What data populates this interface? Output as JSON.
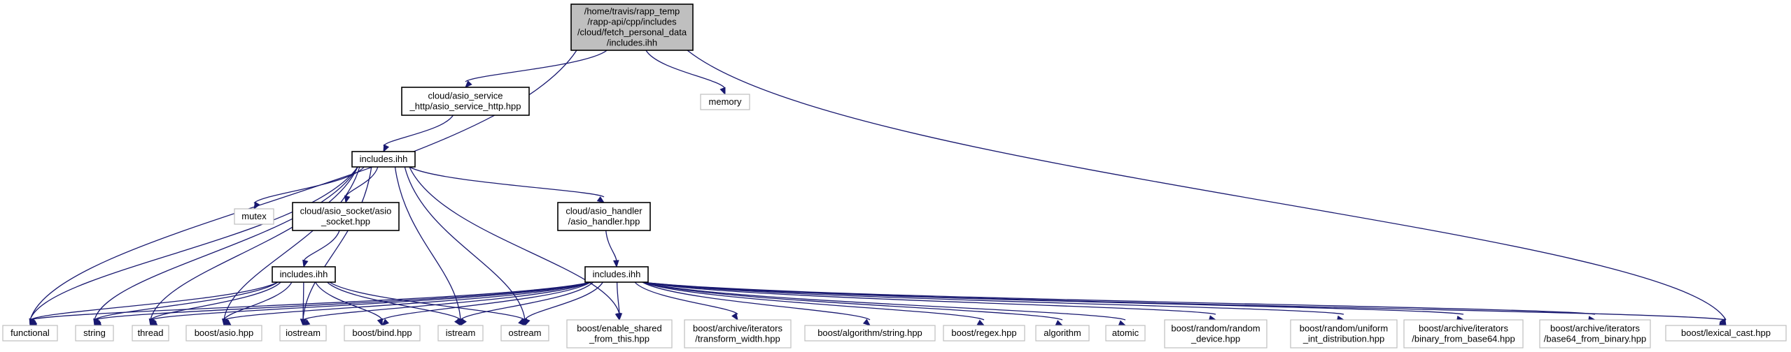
{
  "diagram": {
    "nodes": [
      {
        "id": "root",
        "kind": "root",
        "lines": [
          "/home/travis/rapp_temp",
          "/rapp-api/cpp/includes",
          "/cloud/fetch_personal_data",
          "/includes.ihh"
        ]
      },
      {
        "id": "asio_service_http",
        "kind": "internal",
        "lines": [
          "cloud/asio_service",
          "_http/asio_service_http.hpp"
        ]
      },
      {
        "id": "memory",
        "kind": "external",
        "lines": [
          "memory"
        ]
      },
      {
        "id": "includes_a",
        "kind": "internal",
        "lines": [
          "includes.ihh"
        ]
      },
      {
        "id": "mutex",
        "kind": "external",
        "lines": [
          "mutex"
        ]
      },
      {
        "id": "asio_socket",
        "kind": "internal",
        "lines": [
          "cloud/asio_socket/asio",
          "_socket.hpp"
        ]
      },
      {
        "id": "asio_handler",
        "kind": "internal",
        "lines": [
          "cloud/asio_handler",
          "/asio_handler.hpp"
        ]
      },
      {
        "id": "includes_b",
        "kind": "internal",
        "lines": [
          "includes.ihh"
        ]
      },
      {
        "id": "includes_c",
        "kind": "internal",
        "lines": [
          "includes.ihh"
        ]
      },
      {
        "id": "functional",
        "kind": "external",
        "lines": [
          "functional"
        ]
      },
      {
        "id": "string",
        "kind": "external",
        "lines": [
          "string"
        ]
      },
      {
        "id": "thread",
        "kind": "external",
        "lines": [
          "thread"
        ]
      },
      {
        "id": "boost_asio",
        "kind": "external",
        "lines": [
          "boost/asio.hpp"
        ]
      },
      {
        "id": "iostream",
        "kind": "external",
        "lines": [
          "iostream"
        ]
      },
      {
        "id": "boost_bind",
        "kind": "external",
        "lines": [
          "boost/bind.hpp"
        ]
      },
      {
        "id": "istream",
        "kind": "external",
        "lines": [
          "istream"
        ]
      },
      {
        "id": "ostream",
        "kind": "external",
        "lines": [
          "ostream"
        ]
      },
      {
        "id": "enable_shared",
        "kind": "external",
        "lines": [
          "boost/enable_shared",
          "_from_this.hpp"
        ]
      },
      {
        "id": "transform_width",
        "kind": "external",
        "lines": [
          "boost/archive/iterators",
          "/transform_width.hpp"
        ]
      },
      {
        "id": "algo_string",
        "kind": "external",
        "lines": [
          "boost/algorithm/string.hpp"
        ]
      },
      {
        "id": "regex",
        "kind": "external",
        "lines": [
          "boost/regex.hpp"
        ]
      },
      {
        "id": "algorithm",
        "kind": "external",
        "lines": [
          "algorithm"
        ]
      },
      {
        "id": "atomic",
        "kind": "external",
        "lines": [
          "atomic"
        ]
      },
      {
        "id": "random_device",
        "kind": "external",
        "lines": [
          "boost/random/random",
          "_device.hpp"
        ]
      },
      {
        "id": "uniform_int",
        "kind": "external",
        "lines": [
          "boost/random/uniform",
          "_int_distribution.hpp"
        ]
      },
      {
        "id": "binary_from_base64",
        "kind": "external",
        "lines": [
          "boost/archive/iterators",
          "/binary_from_base64.hpp"
        ]
      },
      {
        "id": "base64_from_binary",
        "kind": "external",
        "lines": [
          "boost/archive/iterators",
          "/base64_from_binary.hpp"
        ]
      },
      {
        "id": "lexical_cast",
        "kind": "external",
        "lines": [
          "boost/lexical_cast.hpp"
        ]
      }
    ],
    "edges": [
      [
        "root",
        "functional"
      ],
      [
        "root",
        "asio_service_http"
      ],
      [
        "root",
        "memory"
      ],
      [
        "root",
        "lexical_cast"
      ],
      [
        "asio_service_http",
        "includes_a"
      ],
      [
        "includes_a",
        "functional"
      ],
      [
        "includes_a",
        "string"
      ],
      [
        "includes_a",
        "thread"
      ],
      [
        "includes_a",
        "boost_asio"
      ],
      [
        "includes_a",
        "mutex"
      ],
      [
        "includes_a",
        "asio_socket"
      ],
      [
        "includes_a",
        "iostream"
      ],
      [
        "includes_a",
        "istream"
      ],
      [
        "includes_a",
        "ostream"
      ],
      [
        "includes_a",
        "enable_shared"
      ],
      [
        "includes_a",
        "asio_handler"
      ],
      [
        "asio_socket",
        "includes_b"
      ],
      [
        "includes_b",
        "functional"
      ],
      [
        "includes_b",
        "string"
      ],
      [
        "includes_b",
        "thread"
      ],
      [
        "includes_b",
        "boost_asio"
      ],
      [
        "includes_b",
        "iostream"
      ],
      [
        "includes_b",
        "boost_bind"
      ],
      [
        "includes_b",
        "istream"
      ],
      [
        "includes_b",
        "ostream"
      ],
      [
        "asio_handler",
        "includes_c"
      ],
      [
        "includes_c",
        "functional"
      ],
      [
        "includes_c",
        "string"
      ],
      [
        "includes_c",
        "thread"
      ],
      [
        "includes_c",
        "boost_asio"
      ],
      [
        "includes_c",
        "iostream"
      ],
      [
        "includes_c",
        "boost_bind"
      ],
      [
        "includes_c",
        "istream"
      ],
      [
        "includes_c",
        "ostream"
      ],
      [
        "includes_c",
        "enable_shared"
      ],
      [
        "includes_c",
        "transform_width"
      ],
      [
        "includes_c",
        "algo_string"
      ],
      [
        "includes_c",
        "regex"
      ],
      [
        "includes_c",
        "algorithm"
      ],
      [
        "includes_c",
        "atomic"
      ],
      [
        "includes_c",
        "random_device"
      ],
      [
        "includes_c",
        "uniform_int"
      ],
      [
        "includes_c",
        "binary_from_base64"
      ],
      [
        "includes_c",
        "base64_from_binary"
      ],
      [
        "includes_c",
        "lexical_cast"
      ]
    ]
  },
  "colors": {
    "edge": "#191970",
    "root_fill": "#bfbfbf",
    "external_border": "#bfbfbf",
    "internal_border": "#000000"
  }
}
